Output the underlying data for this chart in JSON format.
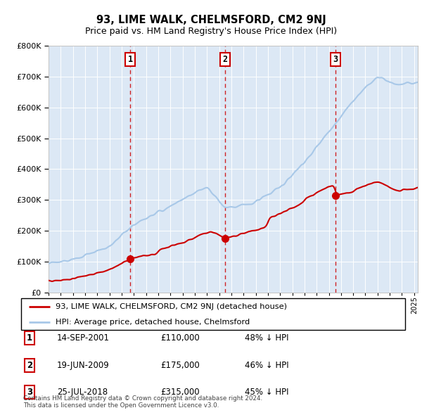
{
  "title": "93, LIME WALK, CHELMSFORD, CM2 9NJ",
  "subtitle": "Price paid vs. HM Land Registry's House Price Index (HPI)",
  "hpi_color": "#a8c8e8",
  "price_color": "#cc0000",
  "plot_bg": "#dce8f5",
  "purchases": [
    {
      "date_num": 2001.71,
      "price": 110000,
      "label": "1"
    },
    {
      "date_num": 2009.47,
      "price": 175000,
      "label": "2"
    },
    {
      "date_num": 2018.56,
      "price": 315000,
      "label": "3"
    }
  ],
  "legend_entries": [
    "93, LIME WALK, CHELMSFORD, CM2 9NJ (detached house)",
    "HPI: Average price, detached house, Chelmsford"
  ],
  "table_rows": [
    {
      "num": "1",
      "date": "14-SEP-2001",
      "price": "£110,000",
      "hpi": "48% ↓ HPI"
    },
    {
      "num": "2",
      "date": "19-JUN-2009",
      "price": "£175,000",
      "hpi": "46% ↓ HPI"
    },
    {
      "num": "3",
      "date": "25-JUL-2018",
      "price": "£315,000",
      "hpi": "45% ↓ HPI"
    }
  ],
  "footer": "Contains HM Land Registry data © Crown copyright and database right 2024.\nThis data is licensed under the Open Government Licence v3.0.",
  "xmin": 1995.0,
  "xmax": 2025.3,
  "ymin": 0,
  "ymax": 800000,
  "yticks": [
    0,
    100000,
    200000,
    300000,
    400000,
    500000,
    600000,
    700000,
    800000
  ]
}
